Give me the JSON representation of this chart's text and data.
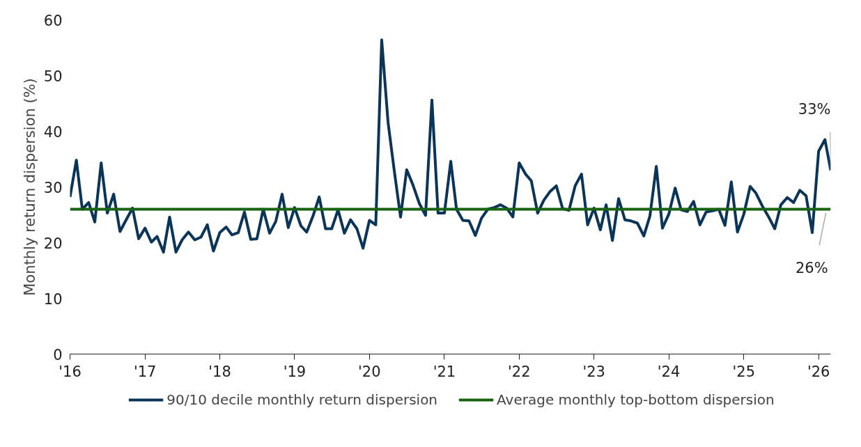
{
  "chart_data": {
    "type": "line",
    "ylabel": "Monthly return dispersion (%)",
    "x": [
      "2016-01",
      "2016-02",
      "2016-03",
      "2016-04",
      "2016-05",
      "2016-06",
      "2016-07",
      "2016-08",
      "2016-09",
      "2016-10",
      "2016-11",
      "2016-12",
      "2017-01",
      "2017-02",
      "2017-03",
      "2017-04",
      "2017-05",
      "2017-06",
      "2017-07",
      "2017-08",
      "2017-09",
      "2017-10",
      "2017-11",
      "2017-12",
      "2018-01",
      "2018-02",
      "2018-03",
      "2018-04",
      "2018-05",
      "2018-06",
      "2018-07",
      "2018-08",
      "2018-09",
      "2018-10",
      "2018-11",
      "2018-12",
      "2019-01",
      "2019-02",
      "2019-03",
      "2019-04",
      "2019-05",
      "2019-06",
      "2019-07",
      "2019-08",
      "2019-09",
      "2019-10",
      "2019-11",
      "2019-12",
      "2020-01",
      "2020-02",
      "2020-03",
      "2020-04",
      "2020-05",
      "2020-06",
      "2020-07",
      "2020-08",
      "2020-09",
      "2020-10",
      "2020-11",
      "2020-12",
      "2021-01",
      "2021-02",
      "2021-03",
      "2021-04",
      "2021-05",
      "2021-06",
      "2021-07",
      "2021-08",
      "2021-09",
      "2021-10",
      "2021-11",
      "2021-12",
      "2022-01",
      "2022-02",
      "2022-03",
      "2022-04",
      "2022-05",
      "2022-06",
      "2022-07",
      "2022-08",
      "2022-09",
      "2022-10",
      "2022-11",
      "2022-12",
      "2023-01",
      "2023-02",
      "2023-03",
      "2023-04",
      "2023-05",
      "2023-06",
      "2023-07",
      "2023-08",
      "2023-09",
      "2023-10",
      "2023-11",
      "2023-12",
      "2024-01",
      "2024-02",
      "2024-03",
      "2024-04",
      "2024-05",
      "2024-06",
      "2024-07",
      "2024-08",
      "2024-09",
      "2024-10",
      "2024-11",
      "2024-12",
      "2025-01",
      "2025-02",
      "2025-03",
      "2025-04",
      "2025-05",
      "2025-06",
      "2025-07",
      "2025-08",
      "2025-09",
      "2025-10",
      "2025-11",
      "2025-12",
      "2026-01",
      "2026-02",
      "2026-03"
    ],
    "series": [
      {
        "name": "90/10 decile monthly return dispersion",
        "color": "#0b3558",
        "values": [
          28.2,
          34.8,
          26.0,
          27.2,
          23.7,
          34.3,
          25.3,
          28.7,
          22.0,
          24.1,
          26.2,
          20.7,
          22.6,
          20.1,
          21.1,
          18.3,
          24.6,
          18.3,
          20.5,
          21.9,
          20.5,
          21.0,
          23.2,
          18.5,
          21.8,
          22.8,
          21.4,
          21.8,
          25.5,
          20.6,
          20.7,
          26.0,
          21.7,
          23.8,
          28.7,
          22.7,
          26.3,
          23.0,
          21.9,
          24.8,
          28.2,
          22.5,
          22.5,
          25.9,
          21.7,
          24.1,
          22.5,
          19.0,
          24.0,
          23.2,
          56.4,
          41.6,
          33.0,
          24.6,
          33.1,
          30.3,
          27.0,
          24.9,
          45.6,
          25.3,
          25.3,
          34.6,
          26.0,
          24.0,
          23.9,
          21.3,
          24.4,
          26.0,
          26.3,
          26.8,
          26.2,
          24.6,
          34.3,
          32.3,
          31.1,
          25.3,
          27.6,
          29.2,
          30.2,
          26.1,
          25.8,
          30.2,
          32.3,
          23.2,
          26.2,
          22.3,
          26.8,
          20.4,
          27.9,
          24.1,
          23.9,
          23.5,
          21.2,
          24.8,
          33.7,
          22.6,
          25.1,
          29.8,
          25.9,
          25.6,
          27.4,
          23.2,
          25.5,
          25.7,
          26.0,
          23.1,
          30.9,
          21.9,
          25.1,
          30.1,
          28.9,
          26.6,
          24.7,
          22.5,
          26.8,
          28.1,
          27.2,
          29.4,
          28.4,
          21.8,
          36.4,
          38.5,
          33
        ]
      },
      {
        "name": "Average monthly top-bottom dispersion",
        "color": "#176312",
        "x": [
          "2016-01",
          "2026-03"
        ],
        "values": [
          26,
          26
        ]
      }
    ],
    "annotations": [
      {
        "text": "33%",
        "x": "2026-03",
        "y": 33
      },
      {
        "text": "26%",
        "x": "2026-03",
        "y": 26
      }
    ],
    "xlim": [
      "2016-01",
      "2026-03"
    ],
    "xticks": [
      {
        "value": "2016-01",
        "label": "'16"
      },
      {
        "value": "2017-01",
        "label": "'17"
      },
      {
        "value": "2018-01",
        "label": "'18"
      },
      {
        "value": "2019-01",
        "label": "'19"
      },
      {
        "value": "2020-01",
        "label": "'20"
      },
      {
        "value": "2021-01",
        "label": "'21"
      },
      {
        "value": "2022-01",
        "label": "'22"
      },
      {
        "value": "2023-01",
        "label": "'23"
      },
      {
        "value": "2024-01",
        "label": "'24"
      },
      {
        "value": "2025-01",
        "label": "'25"
      },
      {
        "value": "2026-01",
        "label": "'26"
      }
    ],
    "ylim": [
      0,
      60
    ],
    "yticks": [
      0,
      10,
      20,
      30,
      40,
      50,
      60
    ],
    "grid": false,
    "legend": "bottom",
    "line_style": "solid"
  }
}
